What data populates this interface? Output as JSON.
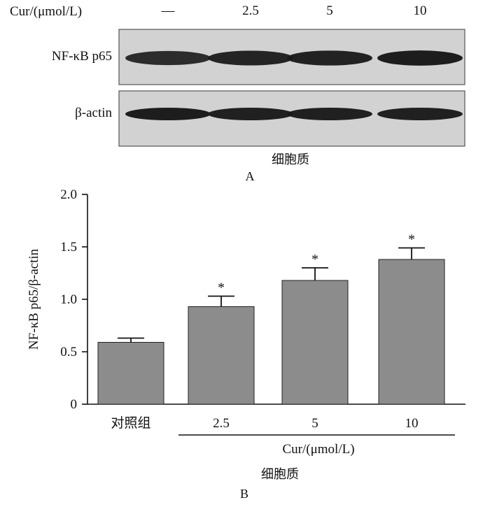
{
  "panel_a": {
    "treatment_label": "Cur/(μmol/L)",
    "lane_labels": [
      "—",
      "2.5",
      "5",
      "10"
    ],
    "rows": [
      {
        "label": "NF-κB p65",
        "band_intensity": [
          0.78,
          0.88,
          0.92,
          0.97
        ]
      },
      {
        "label": "β-actin",
        "band_intensity": [
          0.95,
          0.93,
          0.93,
          0.94
        ]
      }
    ],
    "compartment": "细胞质",
    "panel_letter": "A"
  },
  "chart_data": {
    "type": "bar",
    "categories": [
      "对照组",
      "2.5",
      "5",
      "10"
    ],
    "values": [
      0.59,
      0.93,
      1.18,
      1.38
    ],
    "errors": [
      0.04,
      0.1,
      0.12,
      0.11
    ],
    "significance": [
      "",
      "*",
      "*",
      "*"
    ],
    "ylabel": "NF-κB p65/β-actin",
    "ylim": [
      0,
      2.0
    ],
    "yticks": [
      "0",
      "0.5",
      "1.0",
      "1.5",
      "2.0"
    ],
    "ytick_values": [
      0,
      0.5,
      1.0,
      1.5,
      2.0
    ],
    "group_label": "Cur/(μmol/L)",
    "compartment": "细胞质",
    "panel_letter": "B",
    "grid": false,
    "bar_color": "#8c8c8c"
  }
}
